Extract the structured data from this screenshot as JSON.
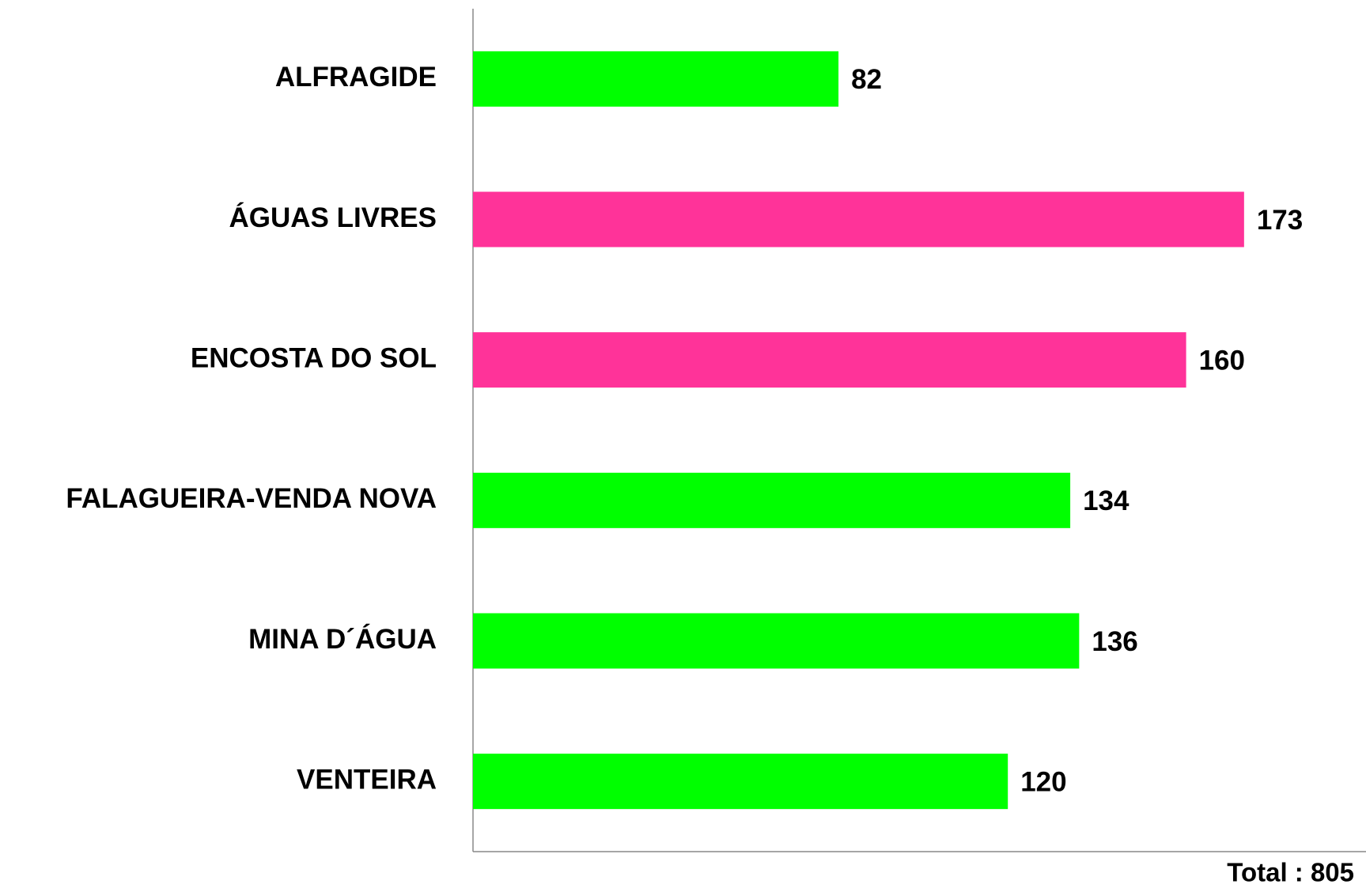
{
  "chart_data": {
    "type": "hbar",
    "categories": [
      "ALFRAGIDE",
      "ÁGUAS LIVRES",
      "ENCOSTA DO SOL",
      "FALAGUEIRA-VENDA NOVA",
      "MINA D´ÁGUA",
      "VENTEIRA"
    ],
    "values": [
      82,
      173,
      160,
      134,
      136,
      120
    ],
    "colors": [
      "#00ff00",
      "#ff3399",
      "#ff3399",
      "#00ff00",
      "#00ff00",
      "#00ff00"
    ],
    "xlim": [
      0,
      200
    ],
    "annotation": "Total : 805"
  }
}
